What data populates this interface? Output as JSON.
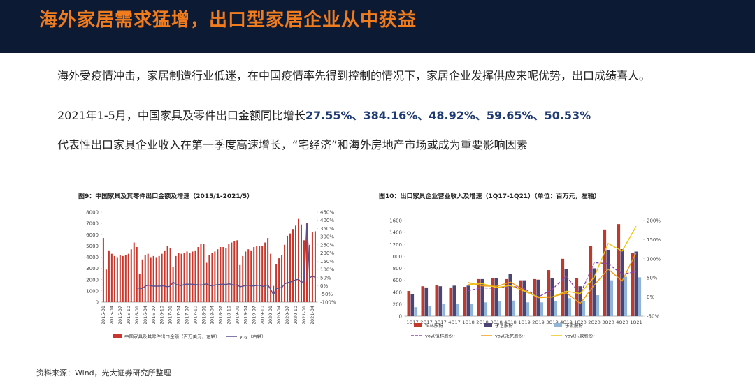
{
  "header": {
    "title": "海外家居需求猛增，出口型家居企业从中获益"
  },
  "bullets": [
    {
      "text": "海外受疫情冲击，家居制造行业低迷，在中国疫情率先得到控制的情况下，家居企业发挥供应来呢优势，出口成绩喜人。"
    },
    {
      "text": "2021年1-5月，中国家具及零件出口金额同比增长",
      "highlight": "27.55%、384.16%、48.92%、59.65%、50.53%"
    },
    {
      "text": "代表性出口家具企业收入在第一季度高速增长，“宅经济”和海外房地产市场或成为重要影响因素"
    }
  ],
  "chart_data": [
    {
      "type": "bar",
      "title": "图9：中国家具及其零件出口金额及增速（2015/1-2021/5）",
      "categories": [
        "2015-01",
        null,
        null,
        "2015-04",
        null,
        null,
        "2015-07",
        null,
        null,
        "2015-10",
        null,
        null,
        "2016-01",
        null,
        null,
        "2016-04",
        null,
        null,
        "2016-07",
        null,
        null,
        "2016-10",
        null,
        null,
        "2017-01",
        null,
        null,
        "2017-04",
        null,
        null,
        "2017-07",
        null,
        null,
        "2017-10",
        null,
        null,
        "2018-01",
        null,
        null,
        "2018-04",
        null,
        null,
        "2018-07",
        null,
        null,
        "2018-10",
        null,
        null,
        "2019-01",
        null,
        null,
        "2019-04",
        null,
        null,
        "2019-07",
        null,
        null,
        "2019-10",
        null,
        null,
        "2020-01",
        null,
        null,
        "2020-04",
        null,
        null,
        "2020-07",
        null,
        null,
        "2020-10",
        null,
        null,
        "2021-01",
        null,
        null,
        "2021-04",
        null
      ],
      "series": [
        {
          "name": "中国家具及其零件出口金额（百万美元，左轴）",
          "type": "bar",
          "color": "#c9372c",
          "values": [
            5700,
            2900,
            4600,
            4300,
            4100,
            4000,
            4200,
            4100,
            4200,
            4300,
            4700,
            5300,
            4900,
            2500,
            3800,
            4200,
            4300,
            4000,
            4100,
            4000,
            4100,
            4300,
            4600,
            5000,
            4800,
            3100,
            4100,
            4400,
            4300,
            4400,
            4500,
            4400,
            4500,
            4600,
            4900,
            5200,
            5200,
            3500,
            4200,
            4400,
            4500,
            4700,
            4900,
            4900,
            4800,
            5200,
            5300,
            5400,
            5500,
            3300,
            4100,
            4500,
            4700,
            4600,
            4900,
            5000,
            5000,
            5000,
            5300,
            5700,
            4300,
            1450,
            3400,
            3900,
            4200,
            5100,
            5900,
            6100,
            6500,
            6800,
            7400,
            6900,
            5500,
            7000,
            5100,
            6200,
            6300
          ]
        },
        {
          "name": "yoy（右轴）",
          "type": "line",
          "axis": "y2",
          "color": "#5a4f8f",
          "values": [
            null,
            null,
            null,
            null,
            null,
            null,
            null,
            null,
            null,
            null,
            null,
            null,
            -14,
            -14,
            -17,
            -2,
            5,
            0,
            -2,
            -2,
            -2,
            0,
            -2,
            -6,
            -2,
            24,
            8,
            5,
            0,
            10,
            10,
            10,
            10,
            7,
            7,
            4,
            8,
            13,
            2,
            0,
            5,
            7,
            9,
            11,
            7,
            13,
            8,
            4,
            6,
            -6,
            -2,
            2,
            4,
            -2,
            0,
            2,
            4,
            -4,
            0,
            6,
            -22,
            -55,
            -17,
            -13,
            -11,
            11,
            20,
            22,
            30,
            36,
            40,
            21,
            27.55,
            384.16,
            48.92,
            59.65,
            50.53
          ]
        }
      ],
      "ylim": [
        0,
        8000
      ],
      "yticks": [
        0,
        1000,
        2000,
        3000,
        4000,
        5000,
        6000,
        7000,
        8000
      ],
      "y2lim": [
        -100,
        450
      ],
      "y2ticks": [
        {
          "value": -100,
          "label": "-100%"
        },
        {
          "value": -50,
          "label": "-50%"
        },
        {
          "value": 0,
          "label": "0%"
        },
        {
          "value": 50,
          "label": "50%"
        },
        {
          "value": 100,
          "label": "100%"
        },
        {
          "value": 150,
          "label": "150%"
        },
        {
          "value": 200,
          "label": "200%"
        },
        {
          "value": 250,
          "label": "250%"
        },
        {
          "value": 300,
          "label": "300%"
        },
        {
          "value": 350,
          "label": "350%"
        },
        {
          "value": 400,
          "label": "400%"
        },
        {
          "value": 450,
          "label": "450%"
        }
      ]
    },
    {
      "type": "bar",
      "title": "图10：出口家具企业营业收入及增速（1Q17-1Q21）（单位：百万元，左轴）",
      "categories": [
        "1Q17",
        "2Q17",
        "3Q17",
        "4Q17",
        "1Q18",
        "2Q18",
        "3Q18",
        "4Q18",
        "1Q19",
        "2Q19",
        "3Q19",
        "4Q19",
        "1Q20",
        "2Q20",
        "3Q20",
        "4Q20",
        "1Q21"
      ],
      "series": [
        {
          "name": "恒林股份",
          "type": "bar",
          "color": "#c0392b",
          "values": [
            420,
            500,
            520,
            480,
            490,
            620,
            640,
            620,
            600,
            620,
            770,
            960,
            640,
            1170,
            1450,
            1540,
            1060
          ]
        },
        {
          "name": "永艺股份",
          "type": "bar",
          "color": "#4a4573",
          "values": [
            370,
            480,
            500,
            510,
            510,
            620,
            640,
            710,
            600,
            610,
            640,
            790,
            500,
            800,
            1110,
            1120,
            1080
          ]
        },
        {
          "name": "乐歌股份",
          "type": "bar",
          "color": "#8fb4d8",
          "values": [
            150,
            170,
            200,
            200,
            200,
            230,
            250,
            260,
            230,
            230,
            250,
            300,
            250,
            350,
            600,
            660,
            650
          ]
        },
        {
          "name": "yoy(恒林股份)",
          "type": "line",
          "axis": "y2",
          "linestyle": "dashed",
          "color": "#8e44ad",
          "values": [
            null,
            null,
            null,
            null,
            17,
            24,
            23,
            29,
            22,
            0,
            20,
            55,
            7,
            90,
            87,
            60,
            66
          ]
        },
        {
          "name": "yoy(永艺股份)",
          "type": "line",
          "axis": "y2",
          "color": "#f39c12",
          "values": [
            null,
            null,
            null,
            null,
            38,
            29,
            28,
            39,
            18,
            -2,
            0,
            11,
            -17,
            31,
            73,
            42,
            116
          ]
        },
        {
          "name": "yoy(乐歌股份)",
          "type": "line",
          "axis": "y2",
          "color": "#f1c40f",
          "values": [
            null,
            null,
            null,
            null,
            33,
            35,
            25,
            30,
            15,
            0,
            0,
            15,
            9,
            52,
            140,
            120,
            185
          ]
        }
      ],
      "ylim": [
        0,
        1600
      ],
      "yticks": [
        0,
        200,
        400,
        600,
        800,
        1000,
        1200,
        1400,
        1600
      ],
      "y2lim": [
        -50,
        200
      ],
      "y2ticks": [
        {
          "value": -50,
          "label": "-50%"
        },
        {
          "value": 0,
          "label": "0%"
        },
        {
          "value": 50,
          "label": "50%"
        },
        {
          "value": 100,
          "label": "100%"
        },
        {
          "value": 150,
          "label": "150%"
        },
        {
          "value": 200,
          "label": "200%"
        }
      ]
    }
  ],
  "source": "资料来源：Wind，光大证券研究所整理"
}
